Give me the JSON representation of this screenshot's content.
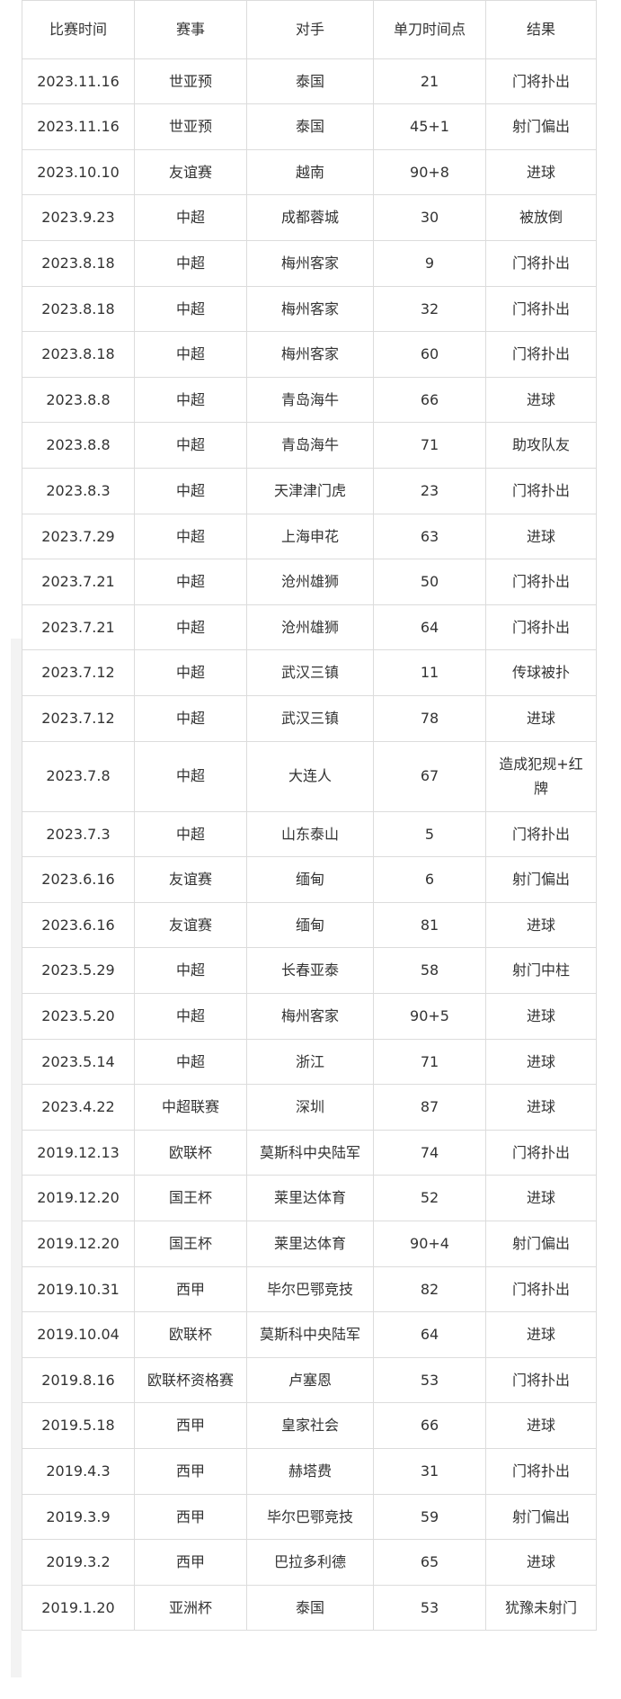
{
  "table": {
    "header": [
      "比赛时间",
      "赛事",
      "对手",
      "单刀时间点",
      "结果"
    ],
    "rows": [
      [
        "2023.11.16",
        "世亚预",
        "泰国",
        "21",
        "门将扑出"
      ],
      [
        "2023.11.16",
        "世亚预",
        "泰国",
        "45+1",
        "射门偏出"
      ],
      [
        "2023.10.10",
        "友谊赛",
        "越南",
        "90+8",
        "进球"
      ],
      [
        "2023.9.23",
        "中超",
        "成都蓉城",
        "30",
        "被放倒"
      ],
      [
        "2023.8.18",
        "中超",
        "梅州客家",
        "9",
        "门将扑出"
      ],
      [
        "2023.8.18",
        "中超",
        "梅州客家",
        "32",
        "门将扑出"
      ],
      [
        "2023.8.18",
        "中超",
        "梅州客家",
        "60",
        "门将扑出"
      ],
      [
        "2023.8.8",
        "中超",
        "青岛海牛",
        "66",
        "进球"
      ],
      [
        "2023.8.8",
        "中超",
        "青岛海牛",
        "71",
        "助攻队友"
      ],
      [
        "2023.8.3",
        "中超",
        "天津津门虎",
        "23",
        "门将扑出"
      ],
      [
        "2023.7.29",
        "中超",
        "上海申花",
        "63",
        "进球"
      ],
      [
        "2023.7.21",
        "中超",
        "沧州雄狮",
        "50",
        "门将扑出"
      ],
      [
        "2023.7.21",
        "中超",
        "沧州雄狮",
        "64",
        "门将扑出"
      ],
      [
        "2023.7.12",
        "中超",
        "武汉三镇",
        "11",
        "传球被扑"
      ],
      [
        "2023.7.12",
        "中超",
        "武汉三镇",
        "78",
        "进球"
      ],
      [
        "2023.7.8",
        "中超",
        "大连人",
        "67",
        "造成犯规+红牌"
      ],
      [
        "2023.7.3",
        "中超",
        "山东泰山",
        "5",
        "门将扑出"
      ],
      [
        "2023.6.16",
        "友谊赛",
        "缅甸",
        "6",
        "射门偏出"
      ],
      [
        "2023.6.16",
        "友谊赛",
        "缅甸",
        "81",
        "进球"
      ],
      [
        "2023.5.29",
        "中超",
        "长春亚泰",
        "58",
        "射门中柱"
      ],
      [
        "2023.5.20",
        "中超",
        "梅州客家",
        "90+5",
        "进球"
      ],
      [
        "2023.5.14",
        "中超",
        "浙江",
        "71",
        "进球"
      ],
      [
        "2023.4.22",
        "中超联赛",
        "深圳",
        "87",
        "进球"
      ],
      [
        "2019.12.13",
        "欧联杯",
        "莫斯科中央陆军",
        "74",
        "门将扑出"
      ],
      [
        "2019.12.20",
        "国王杯",
        "莱里达体育",
        "52",
        "进球"
      ],
      [
        "2019.12.20",
        "国王杯",
        "莱里达体育",
        "90+4",
        "射门偏出"
      ],
      [
        "2019.10.31",
        "西甲",
        "毕尔巴鄂竞技",
        "82",
        "门将扑出"
      ],
      [
        "2019.10.04",
        "欧联杯",
        "莫斯科中央陆军",
        "64",
        "进球"
      ],
      [
        "2019.8.16",
        "欧联杯资格赛",
        "卢塞恩",
        "53",
        "门将扑出"
      ],
      [
        "2019.5.18",
        "西甲",
        "皇家社会",
        "66",
        "进球"
      ],
      [
        "2019.4.3",
        "西甲",
        "赫塔费",
        "31",
        "门将扑出"
      ],
      [
        "2019.3.9",
        "西甲",
        "毕尔巴鄂竞技",
        "59",
        "射门偏出"
      ],
      [
        "2019.3.2",
        "西甲",
        "巴拉多利德",
        "65",
        "进球"
      ],
      [
        "2019.1.20",
        "亚洲杯",
        "泰国",
        "53",
        "犹豫未射门"
      ]
    ]
  }
}
